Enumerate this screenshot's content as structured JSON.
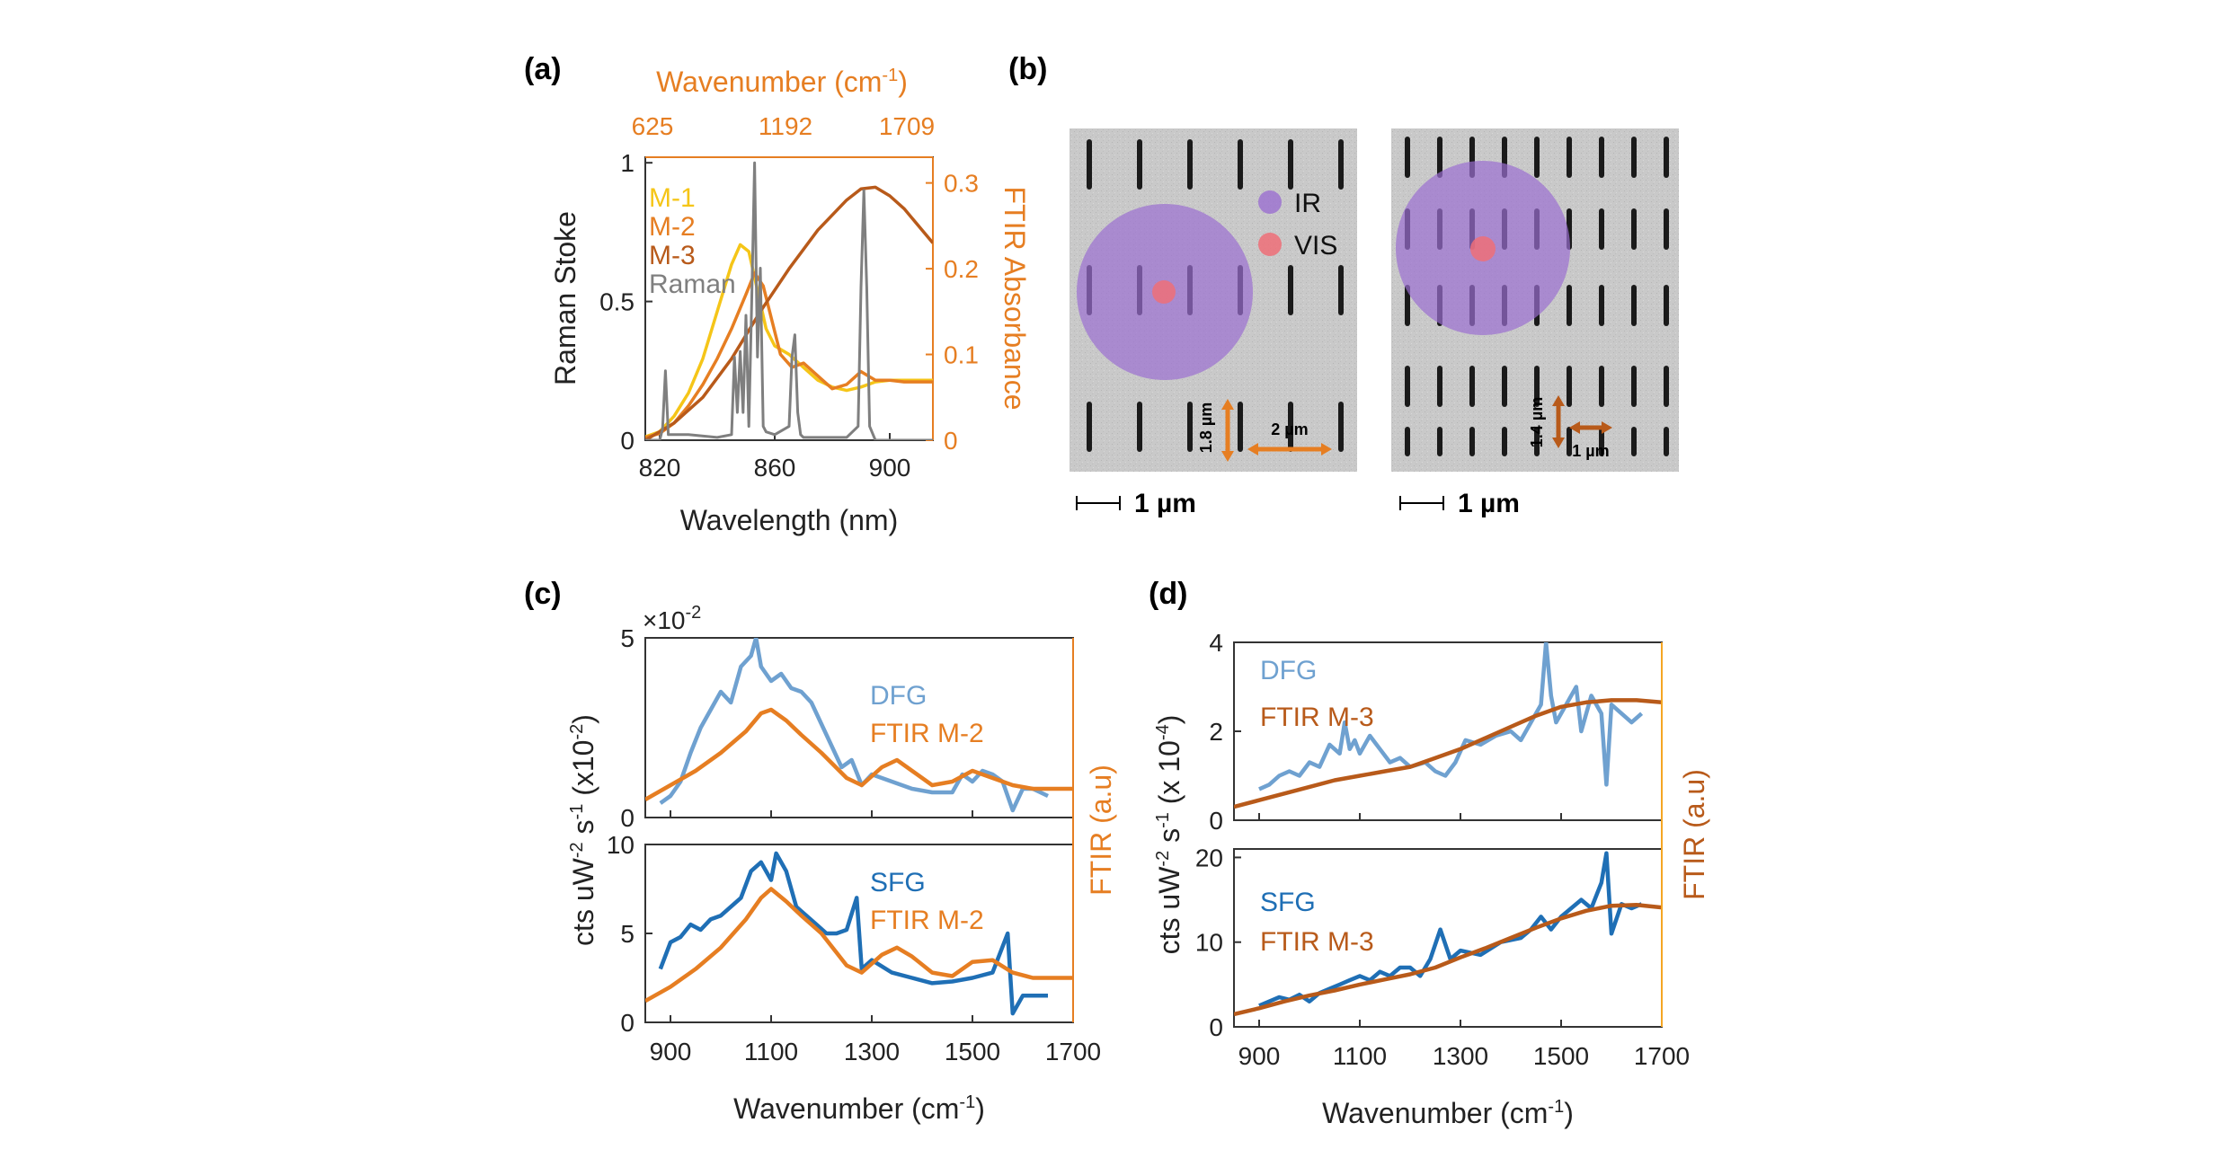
{
  "colors": {
    "orange": "#E67E22",
    "gold": "#F5C518",
    "rust": "#B85A1A",
    "gray": "#7f7f7f",
    "dfg_blue": "#6fa1d0",
    "sfg_blue": "#1f6fb5",
    "ir_purple": "#9b6fd1",
    "vis_red": "#ef6f78"
  },
  "panels": {
    "a_label": "(a)",
    "b_label": "(b)",
    "c_label": "(c)",
    "d_label": "(d)"
  },
  "panel_b": {
    "legend_ir": "IR",
    "legend_vis": "VIS",
    "left_dim_vertical": "1.8 µm",
    "left_dim_horizontal": "2 µm",
    "right_dim_vertical": "1.4 µm",
    "right_dim_horizontal": "1 µm",
    "scale_bar_left": "1 µm",
    "scale_bar_right": "1 µm"
  },
  "chart_data": [
    {
      "id": "a",
      "type": "line",
      "xlabel": "Wavelength (nm)",
      "ylabel": "Raman Stoke",
      "y2label": "FTIR Absorbance",
      "top_axis_label": "Wavenumber (cm-1)",
      "top_axis_label_text": "Wavenumber (cm",
      "top_axis_label_sup": "-1",
      "top_axis_label_close": ")",
      "top_ticks": [
        "625",
        "1192",
        "1709"
      ],
      "xlim": [
        815,
        915
      ],
      "xticks": [
        820,
        860,
        900
      ],
      "ylim": [
        0,
        1.02
      ],
      "yticks": [
        0,
        0.5,
        1
      ],
      "ytick_labels": [
        "0",
        "0.5",
        "1"
      ],
      "y2lim": [
        0,
        0.33
      ],
      "y2ticks": [
        0,
        0.1,
        0.2,
        0.3
      ],
      "y2tick_labels": [
        "0",
        "0.1",
        "0.2",
        "0.3"
      ],
      "series": [
        {
          "name": "M-1",
          "axis": "right",
          "x": [
            815,
            820,
            825,
            830,
            835,
            840,
            845,
            848,
            851,
            854,
            857,
            860,
            865,
            870,
            875,
            880,
            885,
            890,
            895,
            900,
            905,
            910,
            915
          ],
          "values": [
            0.004,
            0.01,
            0.028,
            0.055,
            0.095,
            0.15,
            0.205,
            0.228,
            0.22,
            0.175,
            0.13,
            0.11,
            0.1,
            0.085,
            0.07,
            0.062,
            0.058,
            0.062,
            0.068,
            0.07,
            0.07,
            0.07,
            0.07
          ]
        },
        {
          "name": "M-2",
          "axis": "right",
          "x": [
            815,
            820,
            825,
            830,
            835,
            840,
            845,
            850,
            853,
            856,
            859,
            862,
            866,
            870,
            875,
            880,
            885,
            890,
            895,
            900,
            905,
            910,
            915
          ],
          "values": [
            0.003,
            0.008,
            0.02,
            0.04,
            0.065,
            0.095,
            0.13,
            0.17,
            0.195,
            0.18,
            0.14,
            0.1,
            0.085,
            0.09,
            0.075,
            0.06,
            0.065,
            0.08,
            0.07,
            0.07,
            0.068,
            0.068,
            0.068
          ]
        },
        {
          "name": "M-3",
          "axis": "right",
          "x": [
            815,
            825,
            835,
            845,
            855,
            865,
            875,
            885,
            890,
            895,
            900,
            905,
            910,
            915
          ],
          "values": [
            0.0,
            0.02,
            0.05,
            0.095,
            0.15,
            0.2,
            0.245,
            0.28,
            0.293,
            0.295,
            0.285,
            0.27,
            0.25,
            0.23
          ]
        },
        {
          "name": "Raman",
          "axis": "left",
          "x": [
            815,
            820,
            821,
            822,
            823,
            830,
            840,
            845,
            846,
            847,
            848,
            849,
            850,
            851,
            852,
            853,
            854,
            855,
            856,
            857,
            860,
            865,
            866,
            867,
            868,
            869,
            870,
            875,
            885,
            889,
            890,
            891,
            892,
            893,
            895,
            915
          ],
          "values": [
            0.0,
            0.0,
            0.04,
            0.25,
            0.02,
            0.02,
            0.01,
            0.02,
            0.3,
            0.1,
            0.32,
            0.1,
            0.45,
            0.05,
            0.5,
            1.0,
            0.3,
            0.62,
            0.05,
            0.03,
            0.02,
            0.05,
            0.3,
            0.38,
            0.1,
            0.02,
            0.01,
            0.01,
            0.01,
            0.05,
            0.55,
            0.9,
            0.55,
            0.05,
            0.0,
            0.0
          ]
        }
      ],
      "legend": [
        "M-1",
        "M-2",
        "M-3",
        "Raman"
      ]
    },
    {
      "id": "c",
      "type": "line",
      "xlabel": "Wavenumber (cm-1)",
      "xlabel_text": "Wavenumber (cm",
      "xlabel_sup": "-1",
      "xlabel_close": ")",
      "ylabel": "cts uW-2 s-1 (x10-2)",
      "ylabel_parts": [
        "cts uW",
        "-2",
        " s",
        "-1",
        " (x10",
        "-2",
        ")"
      ],
      "y2label": "FTIR (a.u)",
      "multiplier": "×10",
      "multiplier_sup": "-2",
      "xlim": [
        850,
        1700
      ],
      "xticks": [
        900,
        1100,
        1300,
        1500,
        1700
      ],
      "subplots": [
        {
          "ylim": [
            0,
            5
          ],
          "yticks": [
            0,
            5
          ],
          "series": [
            {
              "name": "DFG",
              "x": [
                880,
                900,
                920,
                940,
                960,
                980,
                1000,
                1020,
                1040,
                1060,
                1070,
                1080,
                1100,
                1120,
                1140,
                1160,
                1180,
                1200,
                1220,
                1240,
                1260,
                1280,
                1300,
                1340,
                1380,
                1420,
                1460,
                1480,
                1500,
                1520,
                1540,
                1560,
                1580,
                1600,
                1620,
                1650
              ],
              "values": [
                0.4,
                0.6,
                1.0,
                1.8,
                2.5,
                3.0,
                3.5,
                3.2,
                4.2,
                4.5,
                5.0,
                4.2,
                3.8,
                4.0,
                3.6,
                3.5,
                3.2,
                2.6,
                2.0,
                1.4,
                1.6,
                0.9,
                1.2,
                1.0,
                0.8,
                0.7,
                0.7,
                1.2,
                1.0,
                1.3,
                1.2,
                1.0,
                0.2,
                0.8,
                0.8,
                0.6
              ]
            },
            {
              "name": "FTIR M-2",
              "x": [
                850,
                900,
                950,
                1000,
                1050,
                1080,
                1100,
                1130,
                1160,
                1200,
                1250,
                1280,
                1320,
                1350,
                1380,
                1420,
                1460,
                1500,
                1540,
                1580,
                1620,
                1660,
                1700
              ],
              "values": [
                0.5,
                0.9,
                1.3,
                1.8,
                2.4,
                2.9,
                3.0,
                2.7,
                2.3,
                1.8,
                1.1,
                0.9,
                1.4,
                1.6,
                1.3,
                0.9,
                1.0,
                1.3,
                1.1,
                0.9,
                0.8,
                0.8,
                0.8
              ]
            }
          ],
          "legend": [
            "DFG",
            "FTIR M-2"
          ]
        },
        {
          "ylim": [
            0,
            10
          ],
          "yticks": [
            0,
            5,
            10
          ],
          "series": [
            {
              "name": "SFG",
              "x": [
                880,
                900,
                920,
                940,
                960,
                980,
                1000,
                1020,
                1040,
                1060,
                1080,
                1100,
                1110,
                1130,
                1150,
                1170,
                1190,
                1210,
                1230,
                1250,
                1270,
                1280,
                1300,
                1340,
                1380,
                1420,
                1460,
                1500,
                1540,
                1570,
                1580,
                1600,
                1620,
                1650
              ],
              "values": [
                3.0,
                4.5,
                4.8,
                5.5,
                5.2,
                5.8,
                6.0,
                6.5,
                7.0,
                8.5,
                9.0,
                8.0,
                9.5,
                8.5,
                6.5,
                6.0,
                5.5,
                5.0,
                5.0,
                5.2,
                7.0,
                3.0,
                3.5,
                2.8,
                2.5,
                2.2,
                2.3,
                2.5,
                2.8,
                5.0,
                0.5,
                1.5,
                1.5,
                1.5
              ]
            },
            {
              "name": "FTIR M-2",
              "x": [
                850,
                900,
                950,
                1000,
                1050,
                1080,
                1100,
                1130,
                1160,
                1200,
                1250,
                1280,
                1320,
                1350,
                1380,
                1420,
                1460,
                1500,
                1540,
                1580,
                1620,
                1660,
                1700
              ],
              "values": [
                1.2,
                2.0,
                3.0,
                4.2,
                5.8,
                7.0,
                7.5,
                6.8,
                6.0,
                5.0,
                3.2,
                2.8,
                3.8,
                4.2,
                3.7,
                2.8,
                2.6,
                3.4,
                3.5,
                2.8,
                2.5,
                2.5,
                2.5
              ]
            }
          ],
          "legend": [
            "SFG",
            "FTIR M-2"
          ]
        }
      ]
    },
    {
      "id": "d",
      "type": "line",
      "xlabel": "Wavenumber (cm-1)",
      "xlabel_text": "Wavenumber (cm",
      "xlabel_sup": "-1",
      "xlabel_close": ")",
      "ylabel": "cts uW-2 s-1 (x 10-4)",
      "ylabel_parts": [
        "cts uW",
        "-2",
        " s",
        "-1",
        " (x 10",
        "-4",
        ")"
      ],
      "y2label": "FTIR (a.u)",
      "xlim": [
        850,
        1700
      ],
      "xticks": [
        900,
        1100,
        1300,
        1500,
        1700
      ],
      "subplots": [
        {
          "ylim": [
            0,
            4
          ],
          "yticks": [
            0,
            2,
            4
          ],
          "series": [
            {
              "name": "DFG",
              "x": [
                900,
                920,
                940,
                960,
                980,
                1000,
                1020,
                1040,
                1060,
                1070,
                1080,
                1090,
                1100,
                1120,
                1140,
                1160,
                1180,
                1200,
                1230,
                1250,
                1270,
                1290,
                1310,
                1340,
                1370,
                1400,
                1420,
                1440,
                1460,
                1470,
                1480,
                1490,
                1510,
                1530,
                1540,
                1560,
                1580,
                1590,
                1600,
                1620,
                1640,
                1660
              ],
              "values": [
                0.7,
                0.8,
                1.0,
                1.1,
                1.0,
                1.3,
                1.2,
                1.7,
                1.5,
                2.2,
                1.6,
                1.8,
                1.5,
                1.9,
                1.6,
                1.3,
                1.4,
                1.2,
                1.3,
                1.1,
                1.0,
                1.3,
                1.8,
                1.7,
                1.9,
                2.0,
                1.8,
                2.2,
                2.6,
                4.0,
                2.8,
                2.2,
                2.6,
                3.0,
                2.0,
                2.8,
                2.4,
                0.8,
                2.6,
                2.4,
                2.2,
                2.4
              ]
            },
            {
              "name": "FTIR M-3",
              "x": [
                850,
                900,
                950,
                1000,
                1050,
                1100,
                1150,
                1200,
                1250,
                1300,
                1350,
                1400,
                1450,
                1500,
                1550,
                1600,
                1650,
                1700
              ],
              "values": [
                0.3,
                0.45,
                0.6,
                0.75,
                0.9,
                1.0,
                1.1,
                1.2,
                1.4,
                1.6,
                1.85,
                2.1,
                2.35,
                2.55,
                2.65,
                2.7,
                2.7,
                2.65
              ]
            }
          ],
          "legend": [
            "DFG",
            "FTIR M-3"
          ]
        },
        {
          "ylim": [
            0,
            21
          ],
          "yticks": [
            0,
            10,
            20
          ],
          "series": [
            {
              "name": "SFG",
              "x": [
                900,
                920,
                940,
                960,
                980,
                1000,
                1020,
                1040,
                1060,
                1080,
                1100,
                1120,
                1140,
                1160,
                1180,
                1200,
                1220,
                1240,
                1260,
                1280,
                1300,
                1340,
                1380,
                1420,
                1440,
                1460,
                1480,
                1500,
                1520,
                1540,
                1560,
                1580,
                1590,
                1600,
                1620,
                1640,
                1660
              ],
              "values": [
                2.5,
                3.0,
                3.5,
                3.2,
                3.8,
                3.0,
                4.0,
                4.5,
                5.0,
                5.5,
                6.0,
                5.5,
                6.5,
                6.0,
                7.0,
                7.0,
                6.0,
                8.0,
                11.5,
                8.0,
                9.0,
                8.5,
                10.0,
                10.5,
                11.5,
                13.0,
                11.5,
                13.0,
                14.0,
                15.0,
                14.0,
                17.0,
                20.5,
                11.0,
                14.5,
                14.0,
                14.5
              ]
            },
            {
              "name": "FTIR M-3",
              "x": [
                850,
                900,
                950,
                1000,
                1050,
                1100,
                1150,
                1200,
                1250,
                1300,
                1350,
                1400,
                1450,
                1500,
                1550,
                1600,
                1650,
                1700
              ],
              "values": [
                1.5,
                2.2,
                3.0,
                3.7,
                4.3,
                5.0,
                5.6,
                6.2,
                7.0,
                8.2,
                9.3,
                10.5,
                11.7,
                12.8,
                13.7,
                14.3,
                14.4,
                14.1
              ]
            }
          ],
          "legend": [
            "SFG",
            "FTIR M-3"
          ]
        }
      ]
    }
  ]
}
